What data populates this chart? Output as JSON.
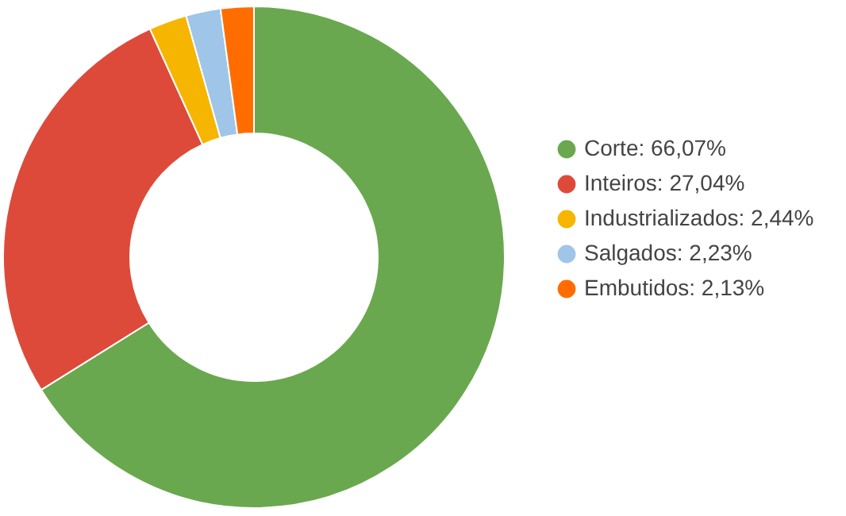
{
  "chart_data": {
    "type": "donut",
    "categories": [
      "Corte",
      "Inteiros",
      "Industrializados",
      "Salgados",
      "Embutidos"
    ],
    "values": [
      66.07,
      27.04,
      2.44,
      2.23,
      2.13
    ],
    "value_labels": [
      "66,07%",
      "27,04%",
      "2,44%",
      "2,23%",
      "2,13%"
    ],
    "colors": [
      "#6aa84f",
      "#dd4a3a",
      "#f6b500",
      "#9fc5e8",
      "#ff6d01"
    ],
    "legend": "right"
  }
}
